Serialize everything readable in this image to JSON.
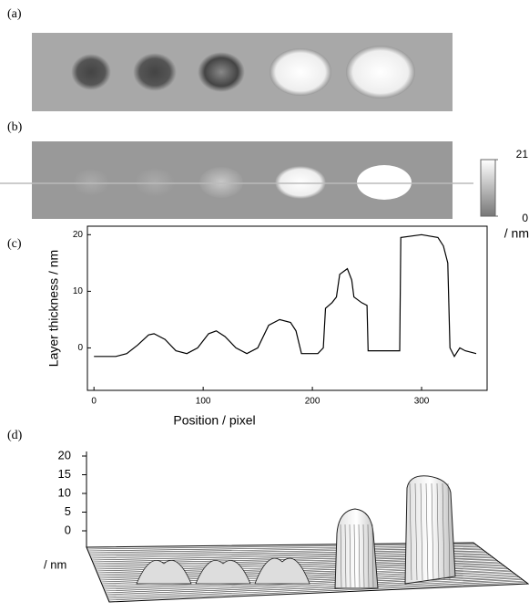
{
  "panels": {
    "a": "(a)",
    "b": "(b)",
    "c": "(c)",
    "d": "(d)"
  },
  "chart_data": [
    {
      "type": "colorbar",
      "ylim": [
        0,
        21
      ],
      "yticks": [
        0,
        21
      ],
      "unit": "/ nm"
    },
    {
      "type": "line",
      "xlabel": "Position / pixel",
      "ylabel": "Layer thickness / nm",
      "color": "#000000",
      "x": [
        0,
        20,
        30,
        40,
        50,
        55,
        65,
        75,
        85,
        95,
        105,
        112,
        120,
        130,
        140,
        150,
        160,
        170,
        180,
        185,
        190,
        205,
        210,
        212,
        218,
        222,
        225,
        232,
        236,
        238,
        245,
        250,
        251,
        270,
        280,
        281,
        300,
        315,
        320,
        324,
        326,
        330,
        335,
        340,
        350
      ],
      "y": [
        -1.5,
        -1.5,
        -1,
        0.5,
        2.3,
        2.5,
        1.5,
        -0.5,
        -1,
        0,
        2.5,
        3,
        2,
        0,
        -1,
        0,
        4,
        5,
        4.5,
        3,
        -1,
        -1,
        0,
        7,
        8,
        9,
        13,
        14,
        12,
        9,
        8,
        7.5,
        -0.5,
        -0.5,
        -0.5,
        19.5,
        20,
        19.5,
        18,
        15,
        0,
        -1.5,
        0,
        -0.5,
        -1
      ],
      "xlim": [
        -6,
        360
      ],
      "ylim": [
        -7.5,
        21.5
      ],
      "xticks": [
        0,
        100,
        200,
        300
      ],
      "yticks": [
        0,
        10,
        20
      ]
    },
    {
      "type": "surface",
      "ylim": [
        0,
        20
      ],
      "yticks": [
        0,
        5,
        10,
        15,
        20
      ],
      "unit": "/ nm"
    }
  ]
}
